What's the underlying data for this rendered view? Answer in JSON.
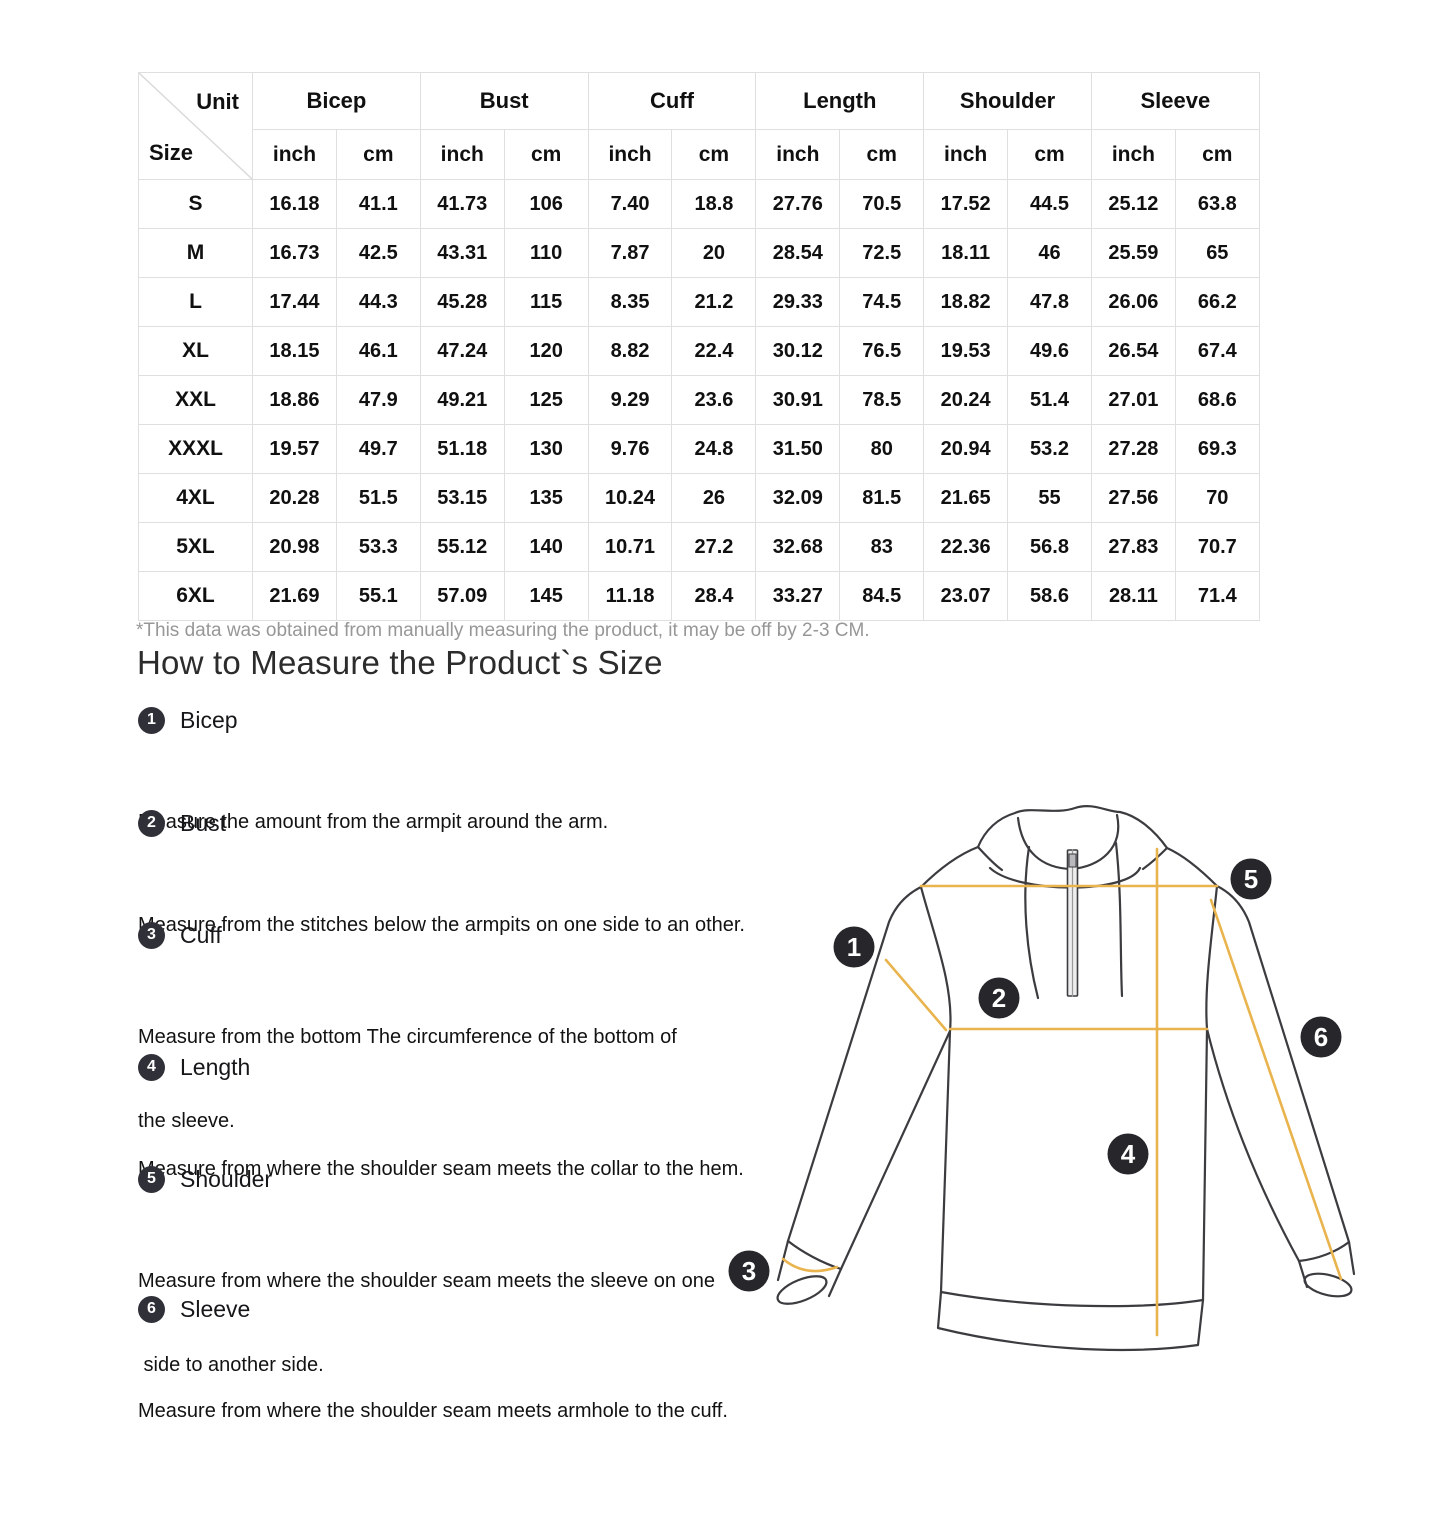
{
  "table": {
    "corner": {
      "unit_label": "Unit",
      "size_label": "Size"
    },
    "groups": [
      "Bicep",
      "Bust",
      "Cuff",
      "Length",
      "Shoulder",
      "Sleeve"
    ],
    "subheaders": [
      "inch",
      "cm",
      "inch",
      "cm",
      "inch",
      "cm",
      "inch",
      "cm",
      "inch",
      "cm",
      "inch",
      "cm"
    ],
    "rows": [
      {
        "size": "S",
        "values": [
          "16.18",
          "41.1",
          "41.73",
          "106",
          "7.40",
          "18.8",
          "27.76",
          "70.5",
          "17.52",
          "44.5",
          "25.12",
          "63.8"
        ]
      },
      {
        "size": "M",
        "values": [
          "16.73",
          "42.5",
          "43.31",
          "110",
          "7.87",
          "20",
          "28.54",
          "72.5",
          "18.11",
          "46",
          "25.59",
          "65"
        ]
      },
      {
        "size": "L",
        "values": [
          "17.44",
          "44.3",
          "45.28",
          "115",
          "8.35",
          "21.2",
          "29.33",
          "74.5",
          "18.82",
          "47.8",
          "26.06",
          "66.2"
        ]
      },
      {
        "size": "XL",
        "values": [
          "18.15",
          "46.1",
          "47.24",
          "120",
          "8.82",
          "22.4",
          "30.12",
          "76.5",
          "19.53",
          "49.6",
          "26.54",
          "67.4"
        ]
      },
      {
        "size": "XXL",
        "values": [
          "18.86",
          "47.9",
          "49.21",
          "125",
          "9.29",
          "23.6",
          "30.91",
          "78.5",
          "20.24",
          "51.4",
          "27.01",
          "68.6"
        ]
      },
      {
        "size": "XXXL",
        "values": [
          "19.57",
          "49.7",
          "51.18",
          "130",
          "9.76",
          "24.8",
          "31.50",
          "80",
          "20.94",
          "53.2",
          "27.28",
          "69.3"
        ]
      },
      {
        "size": "4XL",
        "values": [
          "20.28",
          "51.5",
          "53.15",
          "135",
          "10.24",
          "26",
          "32.09",
          "81.5",
          "21.65",
          "55",
          "27.56",
          "70"
        ]
      },
      {
        "size": "5XL",
        "values": [
          "20.98",
          "53.3",
          "55.12",
          "140",
          "10.71",
          "27.2",
          "32.68",
          "83",
          "22.36",
          "56.8",
          "27.83",
          "70.7"
        ]
      },
      {
        "size": "6XL",
        "values": [
          "21.69",
          "55.1",
          "57.09",
          "145",
          "11.18",
          "28.4",
          "33.27",
          "84.5",
          "23.07",
          "58.6",
          "28.11",
          "71.4"
        ]
      }
    ]
  },
  "footnote": "*This data was obtained from manually measuring the product, it may be off by 2-3 CM.",
  "howto": {
    "title": "How to Measure the Product`s Size",
    "steps": [
      {
        "num": "1",
        "label": "Bicep",
        "lines": [
          "Measure the amount from the armpit around the arm."
        ]
      },
      {
        "num": "2",
        "label": "Bust",
        "lines": [
          "Measure from the stitches below the armpits on one side to an other."
        ]
      },
      {
        "num": "3",
        "label": "Cuff",
        "lines": [
          "Measure from the bottom The circumference of the bottom of",
          "the sleeve."
        ]
      },
      {
        "num": "4",
        "label": "Length",
        "lines": [
          "Measure from where the shoulder seam meets the collar to the hem."
        ]
      },
      {
        "num": "5",
        "label": "Shoulder",
        "lines": [
          "Measure from where the shoulder seam meets the sleeve on one",
          " side to another side."
        ]
      },
      {
        "num": "6",
        "label": "Sleeve",
        "lines": [
          "Measure from where the shoulder seam meets armhole to the cuff."
        ]
      }
    ]
  },
  "diagram": {
    "marker_labels": [
      "1",
      "2",
      "3",
      "4",
      "5",
      "6"
    ],
    "line_color": "#E9B44E",
    "marker_color": "#26262B"
  }
}
